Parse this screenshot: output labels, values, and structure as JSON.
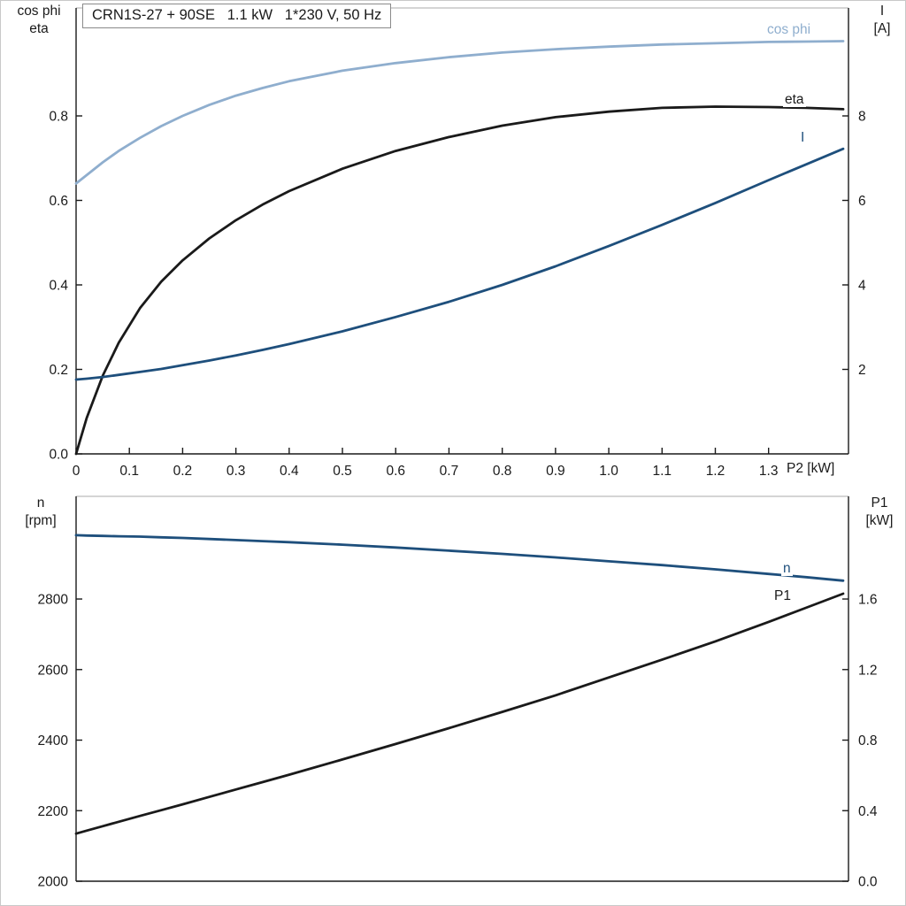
{
  "title": "CRN1S-27 + 90SE   1.1 kW   1*230 V, 50 Hz",
  "colors": {
    "light_blue": "#8FAECE",
    "dark_blue": "#1E4F7C",
    "black": "#1a1a1a"
  },
  "chart_data": [
    {
      "id": "top",
      "type": "line",
      "x_label": "P2 [kW]",
      "xlim": [
        0,
        1.45
      ],
      "x_ticks": [
        0,
        0.1,
        0.2,
        0.3,
        0.4,
        0.5,
        0.6,
        0.7,
        0.8,
        0.9,
        1.0,
        1.1,
        1.2,
        1.3
      ],
      "x_tick_labels": [
        "0",
        "0.1",
        "0.2",
        "0.3",
        "0.4",
        "0.5",
        "0.6",
        "0.7",
        "0.8",
        "0.9",
        "1.0",
        "1.1",
        "1.2",
        "1.3"
      ],
      "x": [
        0,
        0.02,
        0.05,
        0.08,
        0.12,
        0.16,
        0.2,
        0.25,
        0.3,
        0.35,
        0.4,
        0.5,
        0.6,
        0.7,
        0.8,
        0.9,
        1.0,
        1.1,
        1.2,
        1.3,
        1.37,
        1.44
      ],
      "left_axis": {
        "label1": "cos phi",
        "label2": "eta",
        "lim": [
          0,
          1.0555
        ],
        "ticks": [
          0,
          0.2,
          0.4,
          0.6,
          0.8
        ],
        "tick_labels": [
          "0.0",
          "0.2",
          "0.4",
          "0.6",
          "0.8"
        ]
      },
      "right_axis": {
        "label1": "I",
        "label2": "[A]",
        "lim": [
          0,
          10.555
        ],
        "ticks": [
          2,
          4,
          6,
          8
        ],
        "tick_labels": [
          "2",
          "4",
          "6",
          "8"
        ]
      },
      "series": [
        {
          "name": "cos phi",
          "axis": "left",
          "color": "#8FAECE",
          "values": [
            0.64,
            0.66,
            0.69,
            0.717,
            0.748,
            0.776,
            0.8,
            0.826,
            0.848,
            0.866,
            0.882,
            0.907,
            0.925,
            0.939,
            0.95,
            0.958,
            0.964,
            0.969,
            0.972,
            0.975,
            0.976,
            0.977
          ]
        },
        {
          "name": "eta",
          "axis": "left",
          "color": "#1a1a1a",
          "values": [
            0.0,
            0.085,
            0.185,
            0.263,
            0.345,
            0.408,
            0.458,
            0.51,
            0.553,
            0.59,
            0.622,
            0.675,
            0.717,
            0.75,
            0.777,
            0.797,
            0.81,
            0.819,
            0.822,
            0.821,
            0.819,
            0.816
          ]
        },
        {
          "name": "I",
          "axis": "right",
          "color": "#1E4F7C",
          "values": [
            1.76,
            1.78,
            1.82,
            1.87,
            1.94,
            2.01,
            2.1,
            2.21,
            2.33,
            2.46,
            2.6,
            2.9,
            3.24,
            3.6,
            4.0,
            4.44,
            4.92,
            5.42,
            5.94,
            6.48,
            6.85,
            7.22
          ]
        }
      ]
    },
    {
      "id": "bottom",
      "type": "line",
      "x_label": "",
      "xlim": [
        0,
        1.45
      ],
      "x_ticks": [],
      "x_tick_labels": [],
      "x": [
        0,
        0.02,
        0.05,
        0.08,
        0.12,
        0.16,
        0.2,
        0.25,
        0.3,
        0.35,
        0.4,
        0.5,
        0.6,
        0.7,
        0.8,
        0.9,
        1.0,
        1.1,
        1.2,
        1.3,
        1.37,
        1.44
      ],
      "left_axis": {
        "label1": "n",
        "label2": "[rpm]",
        "lim": [
          2000,
          3091
        ],
        "ticks": [
          2000,
          2200,
          2400,
          2600,
          2800
        ],
        "tick_labels": [
          "2000",
          "2200",
          "2400",
          "2600",
          "2800"
        ]
      },
      "right_axis": {
        "label1": "P1",
        "label2": "[kW]",
        "lim": [
          0,
          2.182
        ],
        "ticks": [
          0,
          0.4,
          0.8,
          1.2,
          1.6
        ],
        "tick_labels": [
          "0.0",
          "0.4",
          "0.8",
          "1.2",
          "1.6"
        ]
      },
      "series": [
        {
          "name": "n",
          "axis": "left",
          "color": "#1E4F7C",
          "values": [
            2981,
            2980,
            2979,
            2978,
            2977,
            2975,
            2973,
            2970,
            2967,
            2964,
            2961,
            2954,
            2946,
            2937,
            2928,
            2918,
            2907,
            2896,
            2884,
            2871,
            2862,
            2852
          ]
        },
        {
          "name": "P1",
          "axis": "right",
          "color": "#1a1a1a",
          "values": [
            0.27,
            0.287,
            0.312,
            0.337,
            0.37,
            0.403,
            0.436,
            0.478,
            0.52,
            0.562,
            0.604,
            0.69,
            0.778,
            0.868,
            0.96,
            1.054,
            1.155,
            1.256,
            1.36,
            1.47,
            1.55,
            1.63
          ]
        }
      ]
    }
  ]
}
